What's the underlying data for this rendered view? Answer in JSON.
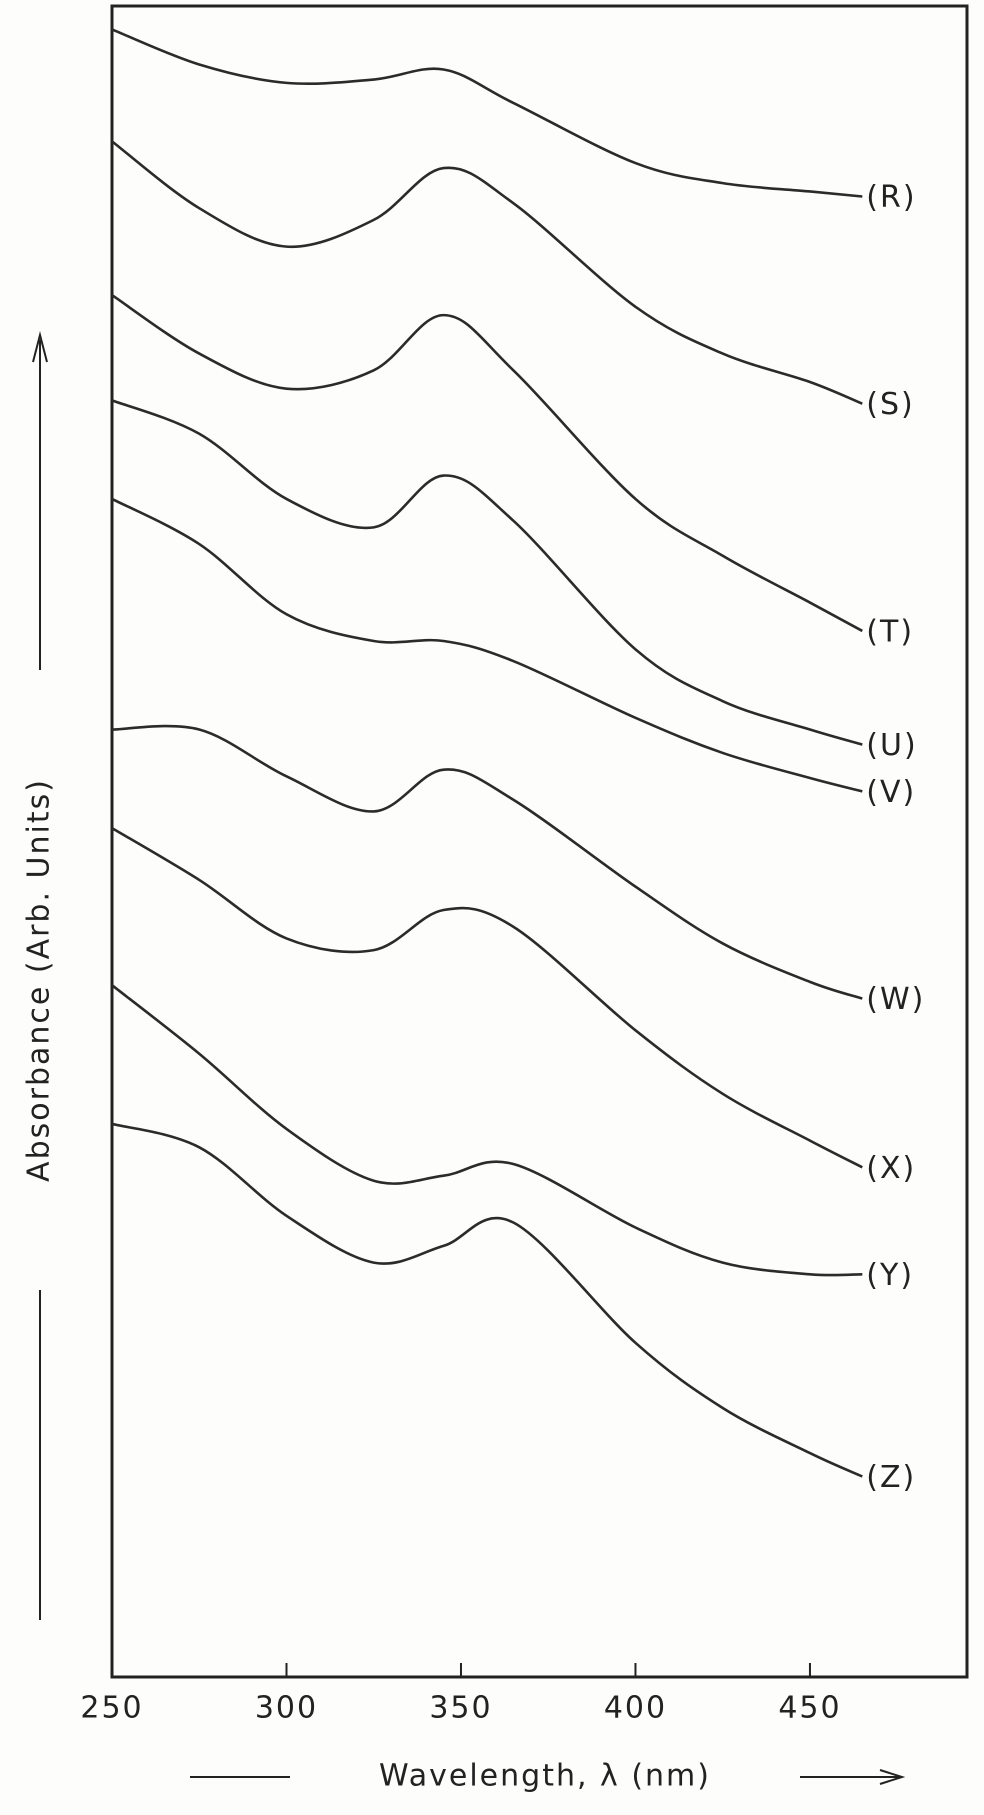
{
  "chart_data": {
    "type": "line",
    "xlabel": "Wavelength, λ (nm)",
    "ylabel": "Absorbance (Arb. Units)",
    "x": [
      250,
      275,
      300,
      325,
      345,
      365,
      400,
      425,
      450,
      465
    ],
    "xlim": [
      250,
      495
    ],
    "xticks": [
      250,
      300,
      350,
      400,
      450
    ],
    "ylim": [
      0,
      100
    ],
    "series": [
      {
        "name": "(R)",
        "color": "#2b2b2b",
        "values": [
          98.6,
          96.5,
          95.4,
          95.6,
          96.2,
          94.2,
          90.6,
          89.4,
          88.9,
          88.6
        ]
      },
      {
        "name": "(S)",
        "color": "#2b2b2b",
        "values": [
          91.9,
          87.9,
          85.6,
          87.2,
          90.3,
          88.2,
          82.0,
          79.2,
          77.5,
          76.2
        ]
      },
      {
        "name": "(T)",
        "color": "#2b2b2b",
        "values": [
          82.7,
          79.2,
          77.1,
          78.2,
          81.5,
          78.2,
          70.5,
          67.1,
          64.3,
          62.6
        ]
      },
      {
        "name": "(U)",
        "color": "#2b2b2b",
        "values": [
          76.4,
          74.4,
          70.5,
          68.8,
          71.9,
          69.2,
          61.5,
          58.4,
          56.7,
          55.8
        ]
      },
      {
        "name": "(V)",
        "color": "#2b2b2b",
        "values": [
          70.5,
          67.8,
          63.6,
          62.0,
          62.0,
          60.8,
          57.4,
          55.3,
          53.8,
          53.0
        ]
      },
      {
        "name": "(W)",
        "color": "#2b2b2b",
        "values": [
          56.7,
          56.7,
          53.9,
          51.8,
          54.3,
          52.5,
          47.3,
          43.9,
          41.6,
          40.6
        ]
      },
      {
        "name": "(X)",
        "color": "#2b2b2b",
        "values": [
          50.8,
          47.7,
          44.2,
          43.5,
          45.9,
          44.9,
          38.7,
          34.9,
          32.1,
          30.5
        ]
      },
      {
        "name": "(Y)",
        "color": "#2b2b2b",
        "values": [
          41.4,
          37.3,
          32.8,
          29.7,
          30.0,
          30.7,
          26.9,
          24.8,
          24.1,
          24.1
        ]
      },
      {
        "name": "(Z)",
        "color": "#2b2b2b",
        "values": [
          33.1,
          31.7,
          27.6,
          24.8,
          25.8,
          27.2,
          20.0,
          16.1,
          13.4,
          12.0
        ]
      }
    ]
  }
}
